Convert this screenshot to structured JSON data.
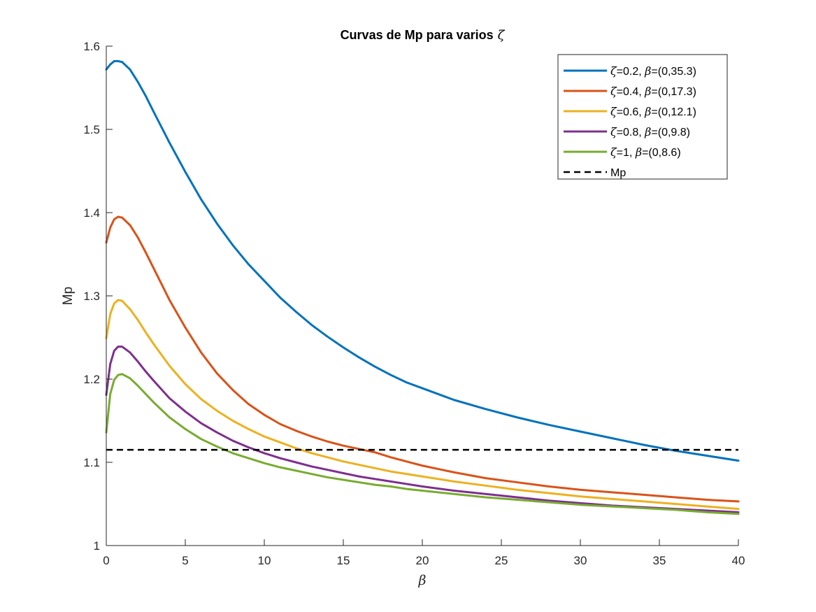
{
  "chart_data": {
    "type": "line",
    "title": "Curvas de Mp para varios",
    "title_symbol": "ζ",
    "xlabel": "β",
    "ylabel": "Mp",
    "xlim": [
      0,
      40
    ],
    "ylim": [
      1,
      1.6
    ],
    "xticks": [
      "0",
      "5",
      "10",
      "15",
      "20",
      "25",
      "30",
      "35",
      "40"
    ],
    "yticks": [
      "1",
      "1.1",
      "1.2",
      "1.3",
      "1.4",
      "1.5",
      "1.6"
    ],
    "grid": false,
    "legend_position": "top-right",
    "x": [
      0,
      0.25,
      0.5,
      0.75,
      1,
      1.5,
      2,
      2.5,
      3,
      4,
      5,
      6,
      7,
      8,
      9,
      10,
      11,
      12,
      13,
      14,
      15,
      16,
      17,
      18,
      19,
      20,
      22,
      24,
      26,
      28,
      30,
      32,
      34,
      36,
      38,
      40
    ],
    "series": [
      {
        "legend": {
          "pre": "ζ",
          "mid": "=0.2, ",
          "beta": "β",
          "post": "=(0,35.3)"
        },
        "color": "#0072BD",
        "dashed": false,
        "values": [
          1.572,
          1.578,
          1.582,
          1.582,
          1.581,
          1.572,
          1.557,
          1.54,
          1.521,
          1.484,
          1.449,
          1.416,
          1.387,
          1.361,
          1.338,
          1.318,
          1.298,
          1.281,
          1.265,
          1.251,
          1.238,
          1.226,
          1.215,
          1.205,
          1.196,
          1.189,
          1.175,
          1.164,
          1.154,
          1.145,
          1.137,
          1.129,
          1.121,
          1.114,
          1.108,
          1.102
        ]
      },
      {
        "legend": {
          "pre": "ζ",
          "mid": "=0.4, ",
          "beta": "β",
          "post": "=(0,17.3)"
        },
        "color": "#D95319",
        "dashed": false,
        "values": [
          1.364,
          1.382,
          1.392,
          1.395,
          1.394,
          1.385,
          1.37,
          1.352,
          1.333,
          1.295,
          1.262,
          1.232,
          1.207,
          1.187,
          1.17,
          1.157,
          1.146,
          1.138,
          1.131,
          1.125,
          1.12,
          1.116,
          1.112,
          1.106,
          1.101,
          1.096,
          1.088,
          1.081,
          1.076,
          1.071,
          1.067,
          1.064,
          1.061,
          1.058,
          1.055,
          1.053
        ]
      },
      {
        "legend": {
          "pre": "ζ",
          "mid": "=0.6, ",
          "beta": "β",
          "post": "=(0,12.1)"
        },
        "color": "#EDB120",
        "dashed": false,
        "values": [
          1.249,
          1.278,
          1.291,
          1.295,
          1.294,
          1.284,
          1.271,
          1.256,
          1.242,
          1.216,
          1.194,
          1.176,
          1.162,
          1.15,
          1.14,
          1.131,
          1.124,
          1.117,
          1.111,
          1.106,
          1.101,
          1.097,
          1.093,
          1.089,
          1.086,
          1.083,
          1.077,
          1.072,
          1.067,
          1.063,
          1.059,
          1.056,
          1.053,
          1.05,
          1.047,
          1.044
        ]
      },
      {
        "legend": {
          "pre": "ζ",
          "mid": "=0.8, ",
          "beta": "β",
          "post": "=(0,9.8)"
        },
        "color": "#7E2F8E",
        "dashed": false,
        "values": [
          1.181,
          1.218,
          1.234,
          1.239,
          1.239,
          1.232,
          1.221,
          1.209,
          1.198,
          1.177,
          1.161,
          1.147,
          1.136,
          1.126,
          1.118,
          1.111,
          1.105,
          1.1,
          1.095,
          1.091,
          1.087,
          1.083,
          1.08,
          1.077,
          1.074,
          1.071,
          1.066,
          1.062,
          1.058,
          1.054,
          1.051,
          1.048,
          1.046,
          1.044,
          1.042,
          1.04
        ]
      },
      {
        "legend": {
          "pre": "ζ",
          "mid": "=1, ",
          "beta": "β",
          "post": "=(0,8.6)"
        },
        "color": "#77AC30",
        "dashed": false,
        "values": [
          1.136,
          1.182,
          1.199,
          1.205,
          1.206,
          1.201,
          1.192,
          1.182,
          1.172,
          1.154,
          1.14,
          1.128,
          1.119,
          1.111,
          1.105,
          1.099,
          1.094,
          1.09,
          1.086,
          1.082,
          1.079,
          1.076,
          1.073,
          1.071,
          1.068,
          1.066,
          1.062,
          1.058,
          1.055,
          1.052,
          1.049,
          1.047,
          1.045,
          1.043,
          1.04,
          1.038
        ]
      },
      {
        "legend": {
          "pre": "",
          "mid": "Mp",
          "beta": "",
          "post": ""
        },
        "color": "#000000",
        "dashed": true,
        "values": [
          1.115,
          1.115,
          1.115,
          1.115,
          1.115,
          1.115,
          1.115,
          1.115,
          1.115,
          1.115,
          1.115,
          1.115,
          1.115,
          1.115,
          1.115,
          1.115,
          1.115,
          1.115,
          1.115,
          1.115,
          1.115,
          1.115,
          1.115,
          1.115,
          1.115,
          1.115,
          1.115,
          1.115,
          1.115,
          1.115,
          1.115,
          1.115,
          1.115,
          1.115,
          1.115,
          1.115
        ]
      }
    ]
  }
}
